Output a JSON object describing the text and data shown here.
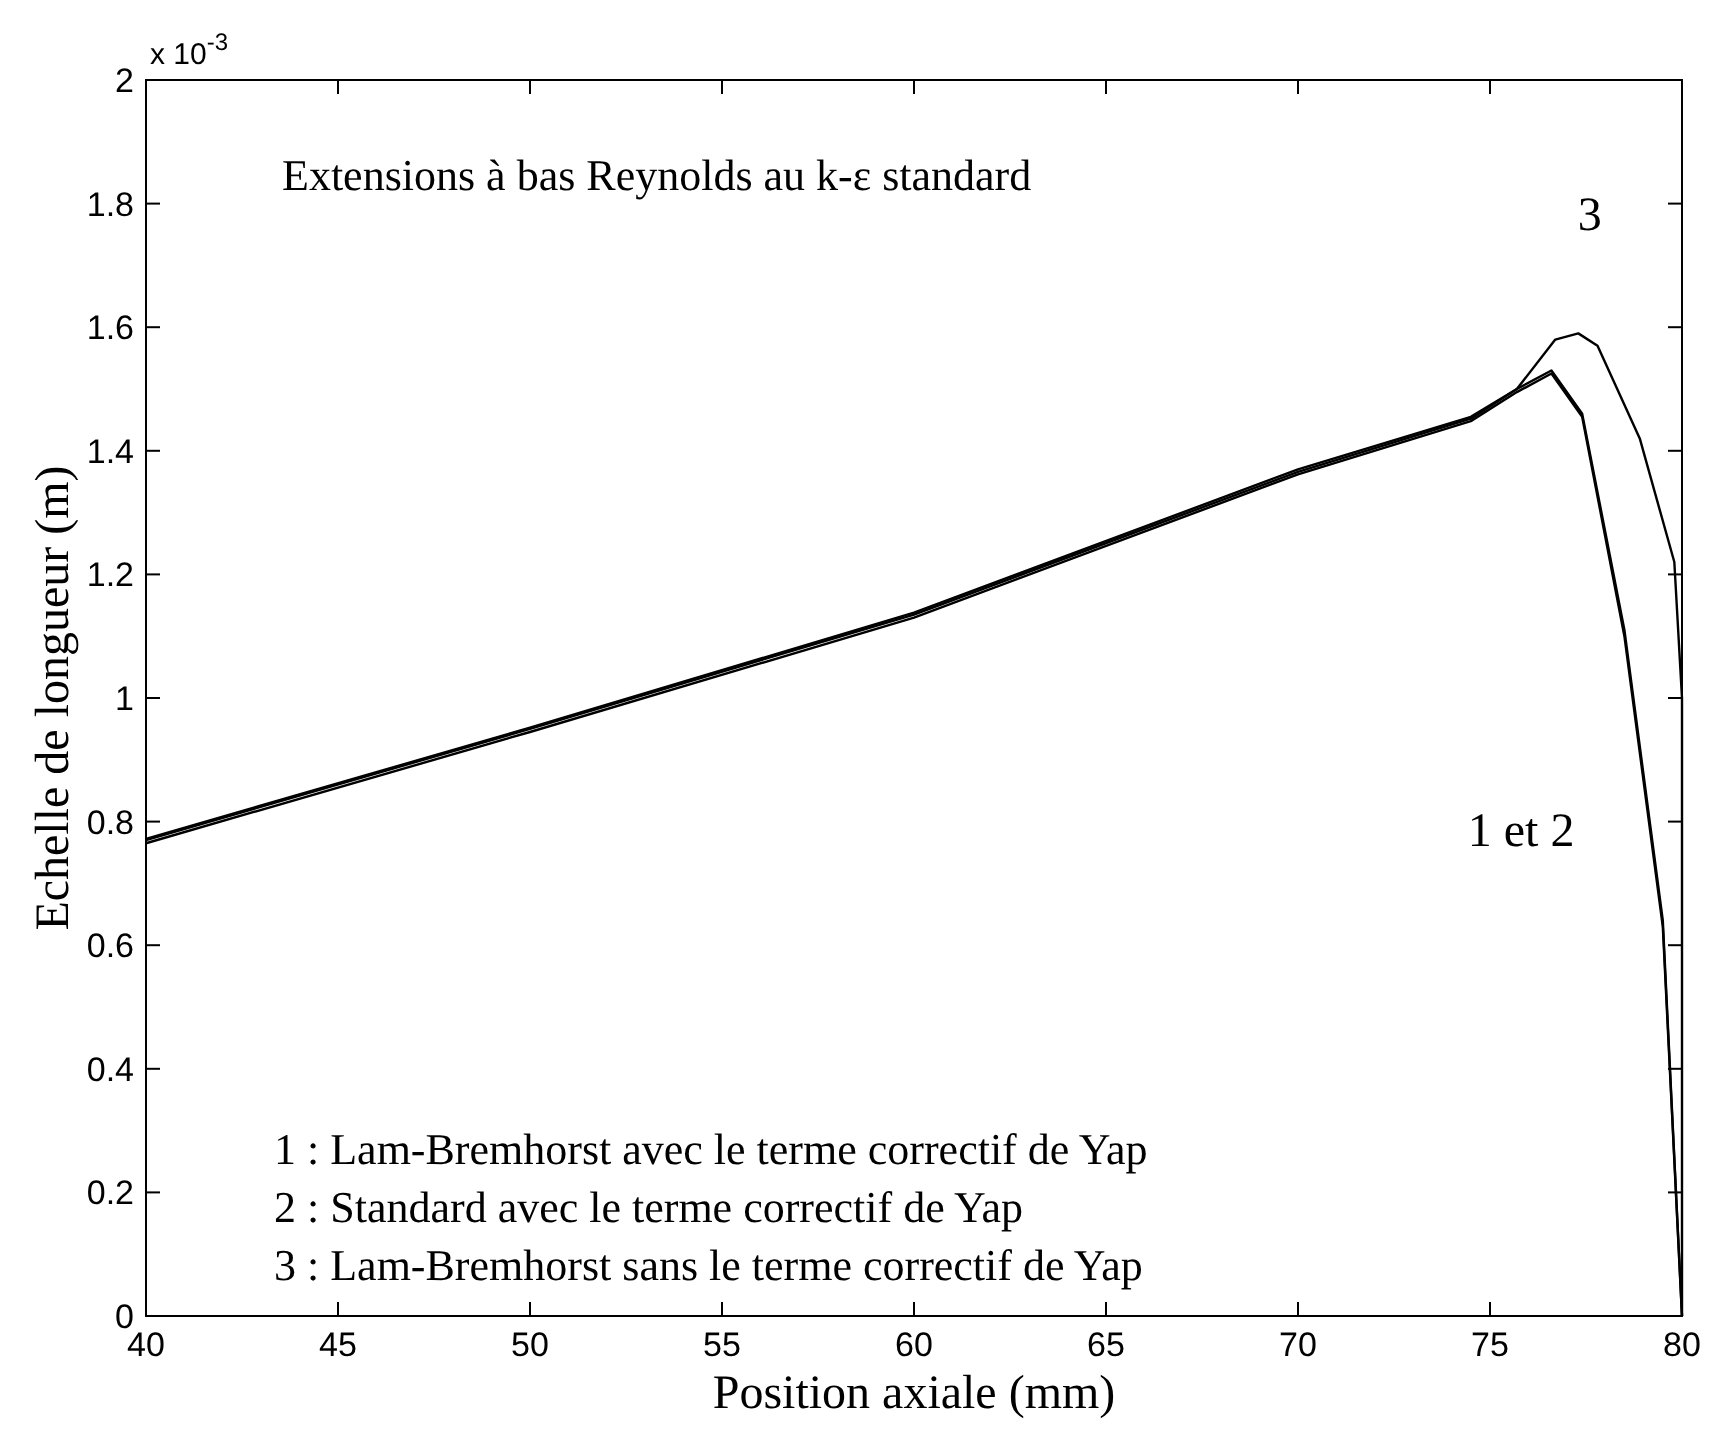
{
  "chart_data": {
    "type": "line",
    "title": "Extensions à bas Reynolds au k-ε  standard",
    "xlabel": "Position axiale (mm)",
    "ylabel": "Echelle de longueur (m)",
    "xlim": [
      40,
      80
    ],
    "xticks": [
      40,
      45,
      50,
      55,
      60,
      65,
      70,
      75,
      80
    ],
    "ylim": [
      0,
      2
    ],
    "yticks": [
      0,
      0.2,
      0.4,
      0.6,
      0.8,
      1,
      1.2,
      1.4,
      1.6,
      1.8,
      2
    ],
    "grid": false,
    "marker": "none",
    "line_style": "solid",
    "series": [
      {
        "color": "#000000",
        "x": [
          40,
          50,
          60,
          70,
          74.5,
          75.7,
          76.6,
          77.4,
          78.5,
          79.5,
          80
        ],
        "values": [
          0.772,
          0.952,
          1.138,
          1.37,
          1.455,
          1.5,
          1.53,
          1.46,
          1.11,
          0.64,
          0
        ]
      },
      {
        "color": "#000000",
        "x": [
          40,
          50,
          60,
          70,
          74.5,
          75.7,
          76.6,
          77.4,
          78.5,
          79.5,
          80
        ],
        "values": [
          0.765,
          0.945,
          1.13,
          1.362,
          1.448,
          1.495,
          1.525,
          1.455,
          1.1,
          0.63,
          0
        ]
      },
      {
        "color": "#000000",
        "x": [
          40,
          50,
          60,
          70,
          74.5,
          75.7,
          76.7,
          77.3,
          77.8,
          78.9,
          79.8,
          80,
          80
        ],
        "values": [
          0.77,
          0.95,
          1.135,
          1.366,
          1.452,
          1.5,
          1.58,
          1.59,
          1.57,
          1.42,
          1.22,
          1,
          0
        ]
      }
    ],
    "annotations": [
      "x 10$^{-3}$",
      "1 : Lam-Bremhorst avec le terme correctif de Yap",
      "2 : Standard avec le terme correctif de Yap",
      "3 : Lam-Bremhorst sans le terme correctif de Yap",
      "3",
      "1 et 2"
    ]
  }
}
